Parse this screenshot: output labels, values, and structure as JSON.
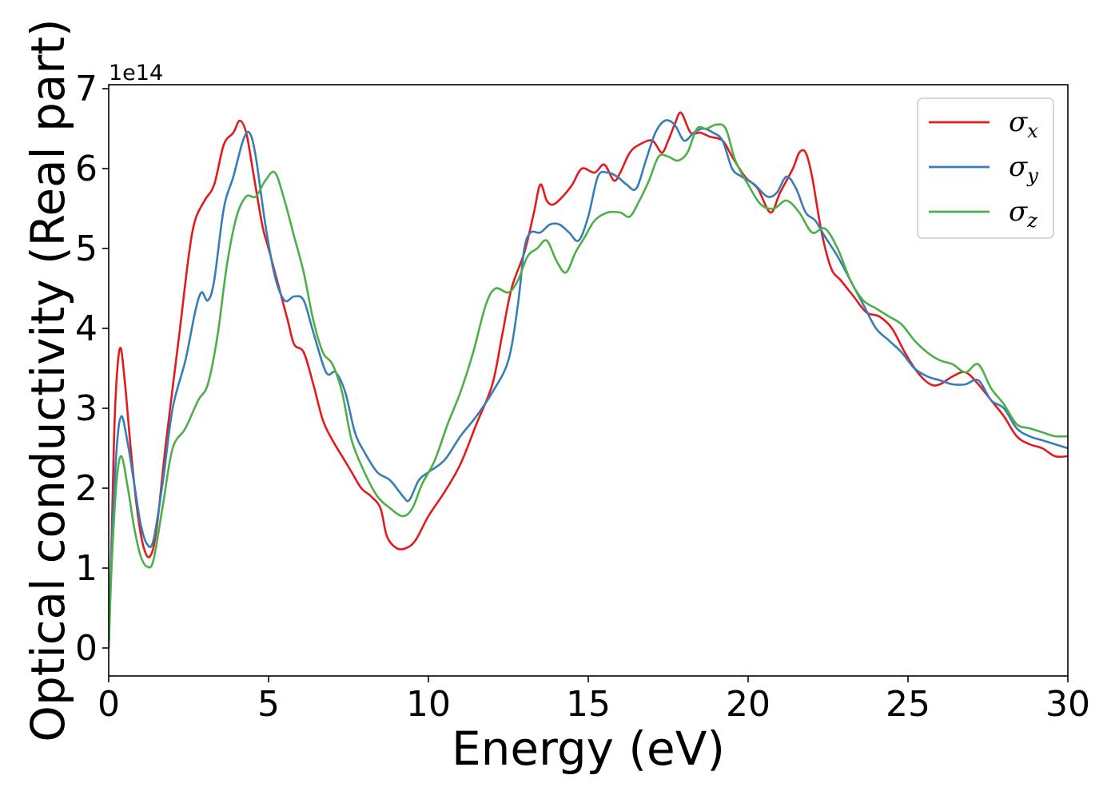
{
  "chart_data": {
    "type": "line",
    "title": "",
    "xlabel": "Energy (eV)",
    "ylabel": "Optical conductivity (Real part)",
    "y_offset_label": "1e14",
    "xlim": [
      0,
      30
    ],
    "ylim": [
      -0.35,
      7.05
    ],
    "xticks": [
      0,
      5,
      10,
      15,
      20,
      25,
      30
    ],
    "yticks": [
      0,
      1,
      2,
      3,
      4,
      5,
      6,
      7
    ],
    "grid": false,
    "legend_position": "top-right",
    "series": [
      {
        "name": "σ",
        "subscript": "x",
        "color": "#e41a1c",
        "points": [
          [
            0,
            0
          ],
          [
            0.1,
            1.5
          ],
          [
            0.2,
            3.0
          ],
          [
            0.35,
            3.75
          ],
          [
            0.5,
            3.35
          ],
          [
            0.7,
            2.45
          ],
          [
            0.9,
            1.7
          ],
          [
            1.1,
            1.25
          ],
          [
            1.3,
            1.15
          ],
          [
            1.5,
            1.5
          ],
          [
            1.8,
            2.6
          ],
          [
            2.2,
            3.9
          ],
          [
            2.5,
            4.9
          ],
          [
            2.7,
            5.35
          ],
          [
            3.0,
            5.6
          ],
          [
            3.3,
            5.8
          ],
          [
            3.6,
            6.3
          ],
          [
            3.9,
            6.45
          ],
          [
            4.1,
            6.6
          ],
          [
            4.3,
            6.45
          ],
          [
            4.5,
            6.0
          ],
          [
            4.8,
            5.3
          ],
          [
            5.0,
            5.0
          ],
          [
            5.3,
            4.55
          ],
          [
            5.6,
            4.1
          ],
          [
            5.8,
            3.8
          ],
          [
            6.1,
            3.7
          ],
          [
            6.4,
            3.3
          ],
          [
            6.7,
            2.85
          ],
          [
            7.0,
            2.6
          ],
          [
            7.3,
            2.4
          ],
          [
            7.6,
            2.2
          ],
          [
            7.9,
            2.0
          ],
          [
            8.2,
            1.9
          ],
          [
            8.5,
            1.75
          ],
          [
            8.7,
            1.4
          ],
          [
            9.0,
            1.25
          ],
          [
            9.3,
            1.25
          ],
          [
            9.6,
            1.35
          ],
          [
            10.0,
            1.65
          ],
          [
            10.5,
            1.95
          ],
          [
            11.0,
            2.3
          ],
          [
            11.5,
            2.8
          ],
          [
            12.0,
            3.3
          ],
          [
            12.3,
            3.9
          ],
          [
            12.6,
            4.5
          ],
          [
            13.0,
            4.95
          ],
          [
            13.3,
            5.45
          ],
          [
            13.5,
            5.8
          ],
          [
            13.7,
            5.6
          ],
          [
            13.9,
            5.55
          ],
          [
            14.2,
            5.65
          ],
          [
            14.5,
            5.8
          ],
          [
            14.8,
            6.0
          ],
          [
            15.2,
            5.95
          ],
          [
            15.5,
            6.05
          ],
          [
            15.8,
            5.85
          ],
          [
            16.0,
            5.95
          ],
          [
            16.3,
            6.2
          ],
          [
            16.6,
            6.3
          ],
          [
            17.0,
            6.35
          ],
          [
            17.3,
            6.2
          ],
          [
            17.5,
            6.35
          ],
          [
            17.7,
            6.55
          ],
          [
            17.9,
            6.7
          ],
          [
            18.2,
            6.45
          ],
          [
            18.5,
            6.45
          ],
          [
            18.8,
            6.4
          ],
          [
            19.2,
            6.35
          ],
          [
            19.5,
            6.15
          ],
          [
            19.9,
            5.9
          ],
          [
            20.3,
            5.75
          ],
          [
            20.7,
            5.45
          ],
          [
            21.0,
            5.7
          ],
          [
            21.4,
            6.0
          ],
          [
            21.6,
            6.2
          ],
          [
            21.8,
            6.2
          ],
          [
            22.0,
            5.9
          ],
          [
            22.3,
            5.2
          ],
          [
            22.6,
            4.75
          ],
          [
            22.9,
            4.6
          ],
          [
            23.3,
            4.4
          ],
          [
            23.7,
            4.2
          ],
          [
            24.1,
            4.15
          ],
          [
            24.5,
            4.0
          ],
          [
            24.9,
            3.7
          ],
          [
            25.3,
            3.45
          ],
          [
            25.7,
            3.3
          ],
          [
            26.0,
            3.3
          ],
          [
            26.4,
            3.4
          ],
          [
            26.8,
            3.45
          ],
          [
            27.2,
            3.3
          ],
          [
            27.6,
            3.1
          ],
          [
            28.0,
            2.9
          ],
          [
            28.4,
            2.65
          ],
          [
            28.8,
            2.55
          ],
          [
            29.2,
            2.5
          ],
          [
            29.6,
            2.4
          ],
          [
            30.0,
            2.4
          ]
        ]
      },
      {
        "name": "σ",
        "subscript": "y",
        "color": "#377eb8",
        "points": [
          [
            0,
            0
          ],
          [
            0.1,
            1.3
          ],
          [
            0.25,
            2.5
          ],
          [
            0.4,
            2.9
          ],
          [
            0.6,
            2.55
          ],
          [
            0.8,
            2.05
          ],
          [
            1.0,
            1.55
          ],
          [
            1.2,
            1.3
          ],
          [
            1.4,
            1.35
          ],
          [
            1.7,
            2.1
          ],
          [
            2.0,
            3.0
          ],
          [
            2.4,
            3.6
          ],
          [
            2.7,
            4.2
          ],
          [
            2.9,
            4.45
          ],
          [
            3.1,
            4.35
          ],
          [
            3.3,
            4.6
          ],
          [
            3.6,
            5.5
          ],
          [
            3.9,
            5.9
          ],
          [
            4.2,
            6.35
          ],
          [
            4.4,
            6.45
          ],
          [
            4.6,
            6.15
          ],
          [
            4.9,
            5.3
          ],
          [
            5.2,
            4.65
          ],
          [
            5.5,
            4.35
          ],
          [
            5.8,
            4.4
          ],
          [
            6.1,
            4.35
          ],
          [
            6.4,
            3.95
          ],
          [
            6.8,
            3.45
          ],
          [
            7.1,
            3.45
          ],
          [
            7.4,
            3.2
          ],
          [
            7.7,
            2.7
          ],
          [
            8.0,
            2.45
          ],
          [
            8.4,
            2.2
          ],
          [
            8.8,
            2.1
          ],
          [
            9.2,
            1.9
          ],
          [
            9.4,
            1.85
          ],
          [
            9.7,
            2.1
          ],
          [
            10.0,
            2.2
          ],
          [
            10.5,
            2.35
          ],
          [
            11.0,
            2.65
          ],
          [
            11.5,
            2.9
          ],
          [
            12.0,
            3.2
          ],
          [
            12.5,
            3.6
          ],
          [
            12.8,
            4.3
          ],
          [
            13.0,
            5.0
          ],
          [
            13.2,
            5.2
          ],
          [
            13.5,
            5.2
          ],
          [
            13.8,
            5.3
          ],
          [
            14.1,
            5.3
          ],
          [
            14.4,
            5.2
          ],
          [
            14.7,
            5.1
          ],
          [
            15.0,
            5.4
          ],
          [
            15.3,
            5.9
          ],
          [
            15.6,
            5.95
          ],
          [
            15.9,
            5.9
          ],
          [
            16.2,
            5.8
          ],
          [
            16.5,
            5.75
          ],
          [
            16.8,
            6.1
          ],
          [
            17.1,
            6.45
          ],
          [
            17.4,
            6.6
          ],
          [
            17.7,
            6.55
          ],
          [
            18.0,
            6.35
          ],
          [
            18.3,
            6.45
          ],
          [
            18.6,
            6.5
          ],
          [
            18.9,
            6.45
          ],
          [
            19.2,
            6.35
          ],
          [
            19.5,
            6.0
          ],
          [
            19.8,
            5.9
          ],
          [
            20.2,
            5.8
          ],
          [
            20.6,
            5.65
          ],
          [
            20.9,
            5.7
          ],
          [
            21.2,
            5.9
          ],
          [
            21.5,
            5.75
          ],
          [
            21.8,
            5.45
          ],
          [
            22.1,
            5.35
          ],
          [
            22.4,
            5.15
          ],
          [
            22.8,
            4.9
          ],
          [
            23.2,
            4.6
          ],
          [
            23.6,
            4.3
          ],
          [
            24.0,
            4.0
          ],
          [
            24.4,
            3.85
          ],
          [
            24.8,
            3.7
          ],
          [
            25.2,
            3.5
          ],
          [
            25.6,
            3.4
          ],
          [
            26.0,
            3.35
          ],
          [
            26.4,
            3.3
          ],
          [
            26.8,
            3.3
          ],
          [
            27.2,
            3.35
          ],
          [
            27.6,
            3.1
          ],
          [
            28.0,
            3.0
          ],
          [
            28.4,
            2.75
          ],
          [
            28.8,
            2.65
          ],
          [
            29.2,
            2.6
          ],
          [
            29.6,
            2.55
          ],
          [
            30.0,
            2.5
          ]
        ]
      },
      {
        "name": "σ",
        "subscript": "z",
        "color": "#4daf4a",
        "points": [
          [
            0,
            0
          ],
          [
            0.1,
            1.1
          ],
          [
            0.25,
            2.1
          ],
          [
            0.4,
            2.4
          ],
          [
            0.6,
            2.0
          ],
          [
            0.8,
            1.5
          ],
          [
            1.0,
            1.15
          ],
          [
            1.2,
            1.02
          ],
          [
            1.4,
            1.1
          ],
          [
            1.7,
            1.8
          ],
          [
            2.0,
            2.5
          ],
          [
            2.4,
            2.75
          ],
          [
            2.8,
            3.1
          ],
          [
            3.1,
            3.3
          ],
          [
            3.4,
            3.9
          ],
          [
            3.7,
            4.8
          ],
          [
            4.0,
            5.4
          ],
          [
            4.3,
            5.65
          ],
          [
            4.6,
            5.65
          ],
          [
            4.9,
            5.85
          ],
          [
            5.2,
            5.95
          ],
          [
            5.5,
            5.6
          ],
          [
            5.8,
            5.15
          ],
          [
            6.1,
            4.7
          ],
          [
            6.4,
            4.1
          ],
          [
            6.7,
            3.7
          ],
          [
            7.0,
            3.55
          ],
          [
            7.3,
            3.2
          ],
          [
            7.6,
            2.6
          ],
          [
            8.0,
            2.2
          ],
          [
            8.4,
            1.9
          ],
          [
            8.8,
            1.75
          ],
          [
            9.2,
            1.65
          ],
          [
            9.5,
            1.75
          ],
          [
            9.8,
            2.05
          ],
          [
            10.2,
            2.35
          ],
          [
            10.6,
            2.8
          ],
          [
            11.0,
            3.2
          ],
          [
            11.4,
            3.7
          ],
          [
            11.8,
            4.3
          ],
          [
            12.1,
            4.5
          ],
          [
            12.5,
            4.45
          ],
          [
            12.8,
            4.6
          ],
          [
            13.1,
            4.9
          ],
          [
            13.4,
            5.0
          ],
          [
            13.7,
            5.1
          ],
          [
            14.0,
            4.85
          ],
          [
            14.3,
            4.7
          ],
          [
            14.6,
            4.95
          ],
          [
            14.9,
            5.15
          ],
          [
            15.2,
            5.35
          ],
          [
            15.6,
            5.45
          ],
          [
            16.0,
            5.45
          ],
          [
            16.3,
            5.4
          ],
          [
            16.6,
            5.6
          ],
          [
            16.9,
            5.85
          ],
          [
            17.2,
            6.15
          ],
          [
            17.5,
            6.15
          ],
          [
            17.8,
            6.1
          ],
          [
            18.1,
            6.2
          ],
          [
            18.4,
            6.5
          ],
          [
            18.7,
            6.5
          ],
          [
            19.0,
            6.55
          ],
          [
            19.3,
            6.5
          ],
          [
            19.6,
            6.1
          ],
          [
            20.0,
            5.8
          ],
          [
            20.4,
            5.55
          ],
          [
            20.8,
            5.5
          ],
          [
            21.2,
            5.6
          ],
          [
            21.6,
            5.45
          ],
          [
            22.0,
            5.2
          ],
          [
            22.4,
            5.25
          ],
          [
            22.8,
            5.0
          ],
          [
            23.2,
            4.6
          ],
          [
            23.6,
            4.35
          ],
          [
            24.0,
            4.25
          ],
          [
            24.4,
            4.15
          ],
          [
            24.8,
            4.05
          ],
          [
            25.2,
            3.85
          ],
          [
            25.6,
            3.7
          ],
          [
            26.0,
            3.6
          ],
          [
            26.4,
            3.55
          ],
          [
            26.8,
            3.45
          ],
          [
            27.2,
            3.55
          ],
          [
            27.6,
            3.25
          ],
          [
            28.0,
            3.05
          ],
          [
            28.4,
            2.8
          ],
          [
            28.8,
            2.75
          ],
          [
            29.2,
            2.7
          ],
          [
            29.6,
            2.65
          ],
          [
            30.0,
            2.65
          ]
        ]
      }
    ]
  }
}
